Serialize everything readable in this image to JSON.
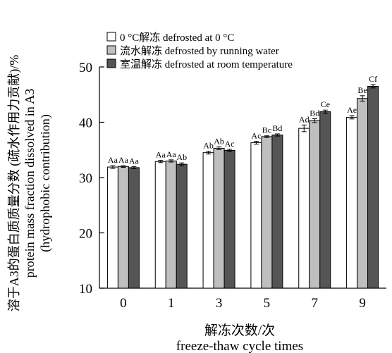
{
  "chart_data": {
    "type": "bar",
    "categories": [
      "0",
      "1",
      "3",
      "5",
      "7",
      "9"
    ],
    "series": [
      {
        "name": "0 °C解冻    defrosted at 0 °C",
        "color": "#ffffff",
        "values": [
          31.9,
          32.9,
          34.5,
          36.3,
          38.9,
          40.9
        ],
        "errors": [
          0.25,
          0.2,
          0.25,
          0.25,
          0.6,
          0.3
        ],
        "labels": [
          "Aa",
          "Aa",
          "Ab",
          "Ac",
          "Ad",
          "Ae"
        ]
      },
      {
        "name": "流水解冻    defrosted by running water",
        "color": "#bfbfbf",
        "values": [
          32.0,
          33.0,
          35.3,
          37.4,
          40.3,
          44.3
        ],
        "errors": [
          0.15,
          0.2,
          0.25,
          0.15,
          0.35,
          0.5
        ],
        "labels": [
          "Aa",
          "Aa",
          "Ab",
          "Bc",
          "Bd",
          "Be"
        ]
      },
      {
        "name": "室温解冻    defrosted at room temperature",
        "color": "#555555",
        "values": [
          31.8,
          32.4,
          34.9,
          37.7,
          41.9,
          46.5
        ],
        "errors": [
          0.2,
          0.25,
          0.2,
          0.2,
          0.3,
          0.3
        ],
        "labels": [
          "Aa",
          "Ab",
          "Ac",
          "Bd",
          "Ce",
          "Cf"
        ]
      }
    ],
    "ylim": [
      10,
      50
    ],
    "yticks": [
      10,
      20,
      30,
      40,
      50
    ],
    "ylabel_lines": [
      "溶于A3的蛋白质质量分数 (疏水作用力贡献)/%",
      "protein mass fraction dissolved in A3",
      "(hydrophobic contribution)"
    ],
    "xlabel_lines": [
      "解冻次数/次",
      "freeze-thaw cycle times"
    ],
    "legend_position": "top-left",
    "grid": false
  }
}
